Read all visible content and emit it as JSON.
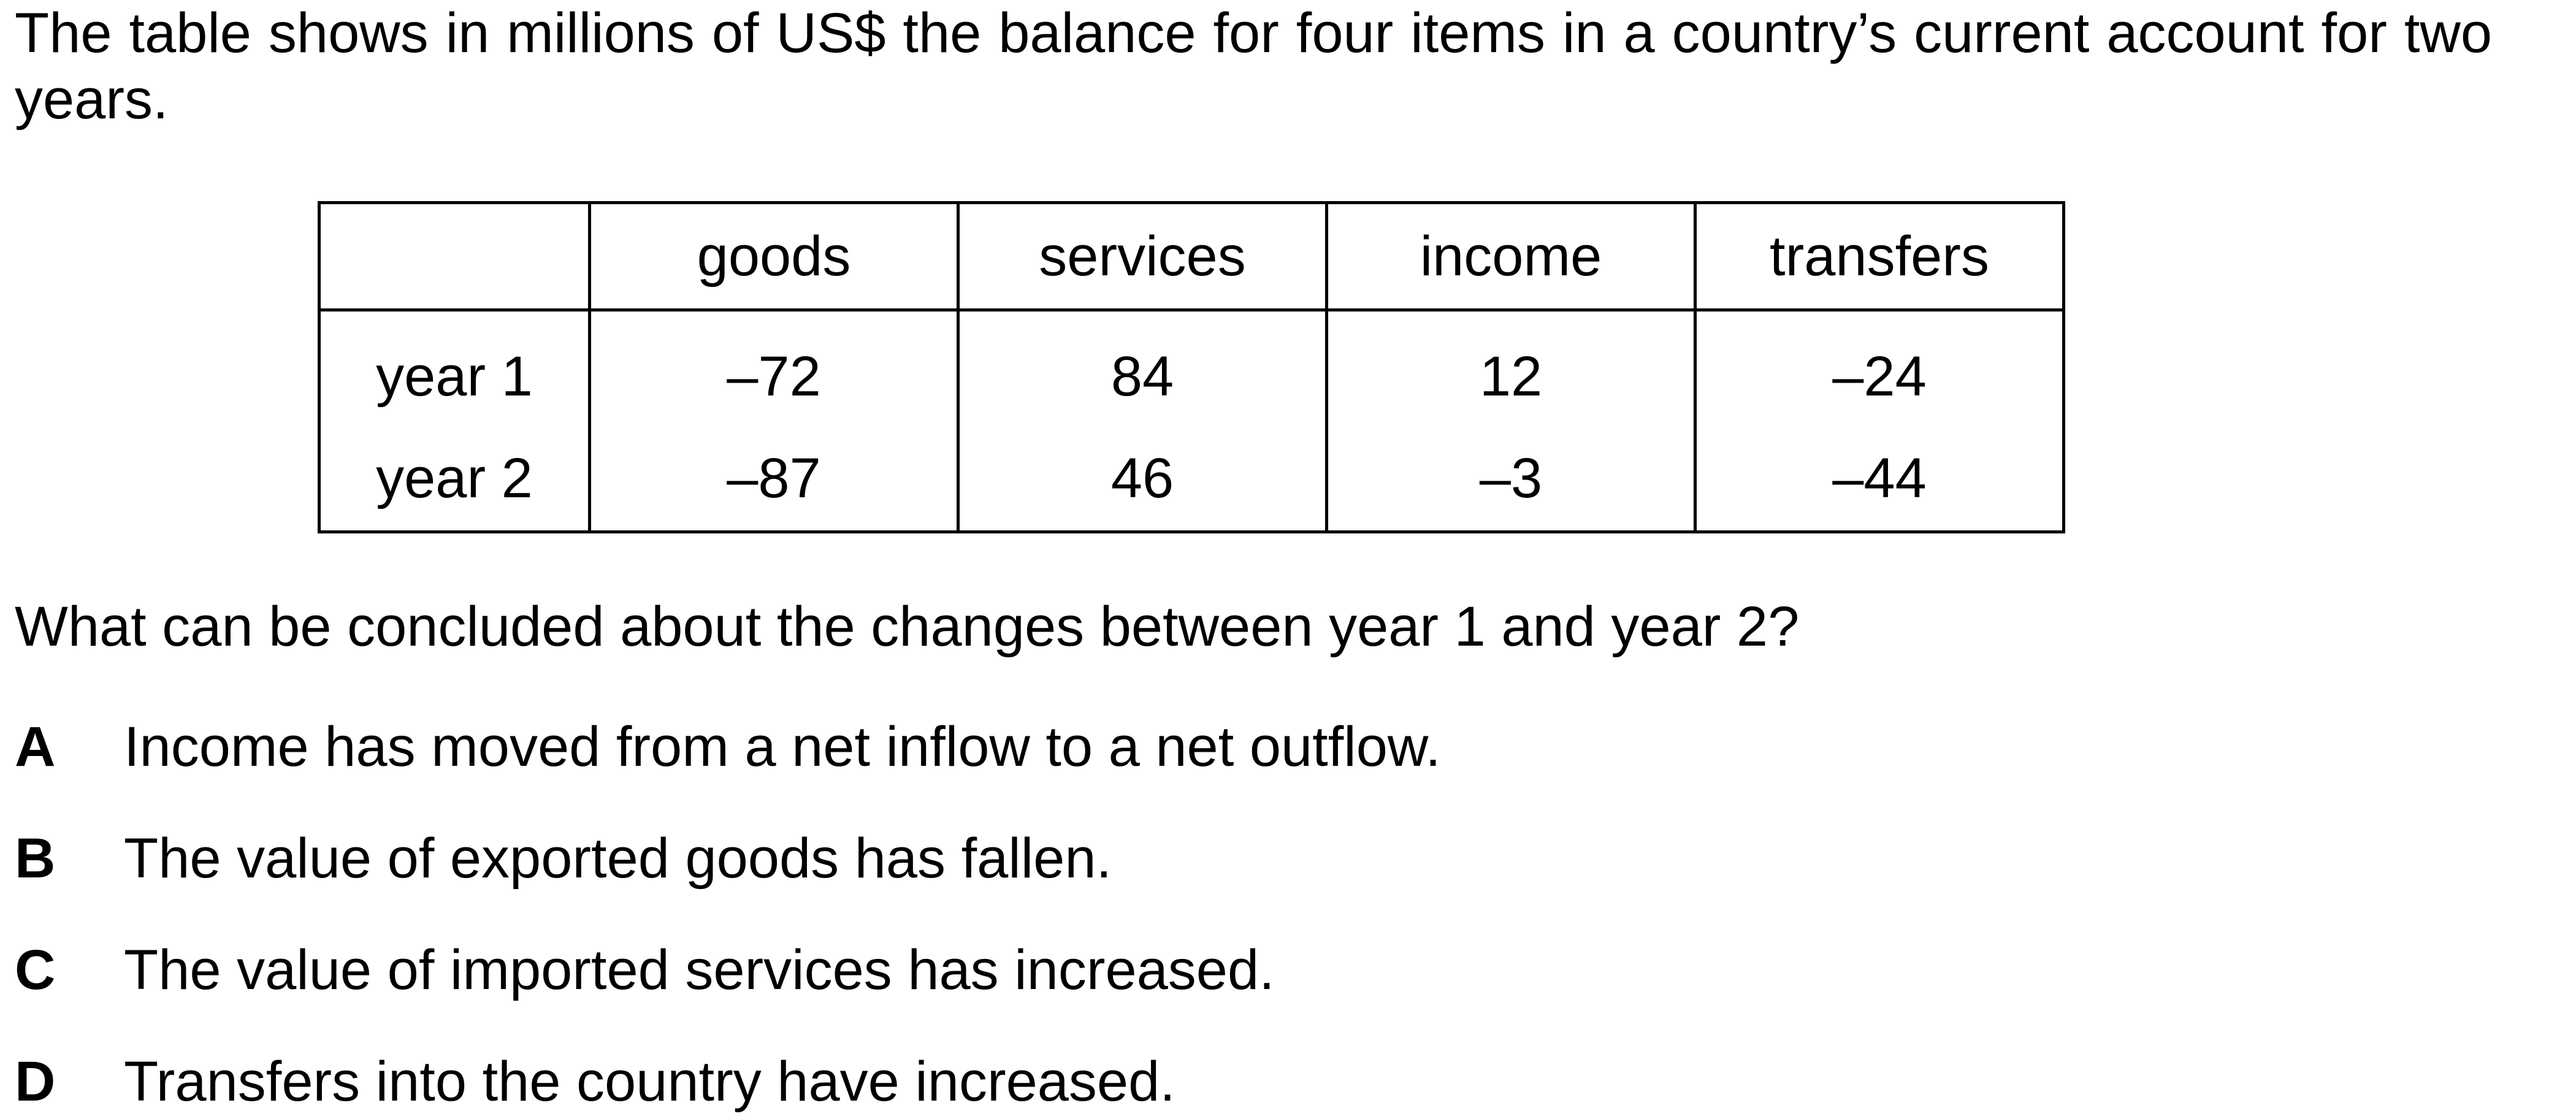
{
  "intro": "The table shows in millions of US$ the balance for four items in a country’s current account for two years.",
  "table": {
    "headers": [
      "",
      "goods",
      "services",
      "income",
      "transfers"
    ],
    "rows": [
      [
        "year 1",
        "–72",
        "84",
        "12",
        "–24"
      ],
      [
        "year 2",
        "–87",
        "46",
        "–3",
        "–44"
      ]
    ]
  },
  "question": "What can be concluded about the changes between year 1 and year 2?",
  "options": [
    {
      "letter": "A",
      "text": "Income has moved from a net inflow to a net outflow."
    },
    {
      "letter": "B",
      "text": "The value of exported goods has fallen."
    },
    {
      "letter": "C",
      "text": "The value of imported services has increased."
    },
    {
      "letter": "D",
      "text": "Transfers into the country have increased."
    }
  ]
}
